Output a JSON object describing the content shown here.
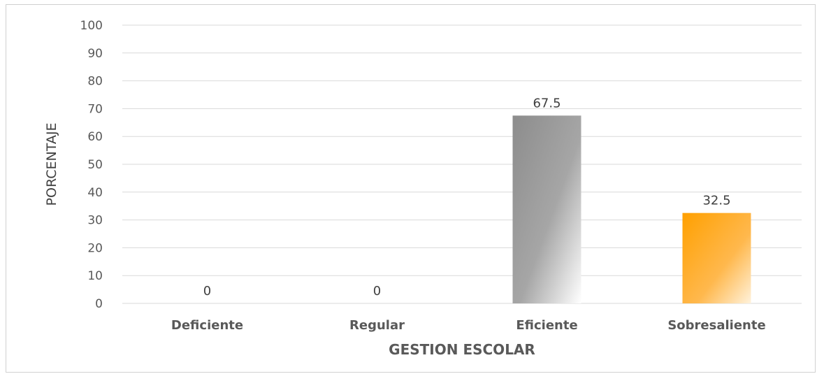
{
  "chart_data": {
    "type": "bar",
    "categories": [
      "Deficiente",
      "Regular",
      "Eficiente",
      "Sobresaliente"
    ],
    "values": [
      0,
      0,
      67.5,
      32.5
    ],
    "data_labels": [
      "0",
      "0",
      "67.5",
      "32.5"
    ],
    "xlabel": "GESTION ESCOLAR",
    "ylabel": "PORCENTAJE",
    "ylim": [
      0,
      100
    ],
    "yticks": [
      0,
      10,
      20,
      30,
      40,
      50,
      60,
      70,
      80,
      90,
      100
    ],
    "grid": true,
    "legend": "none",
    "bar_colors": [
      "#8c8c8c",
      "#8c8c8c",
      "#8c8c8c",
      "#ffa500"
    ]
  }
}
